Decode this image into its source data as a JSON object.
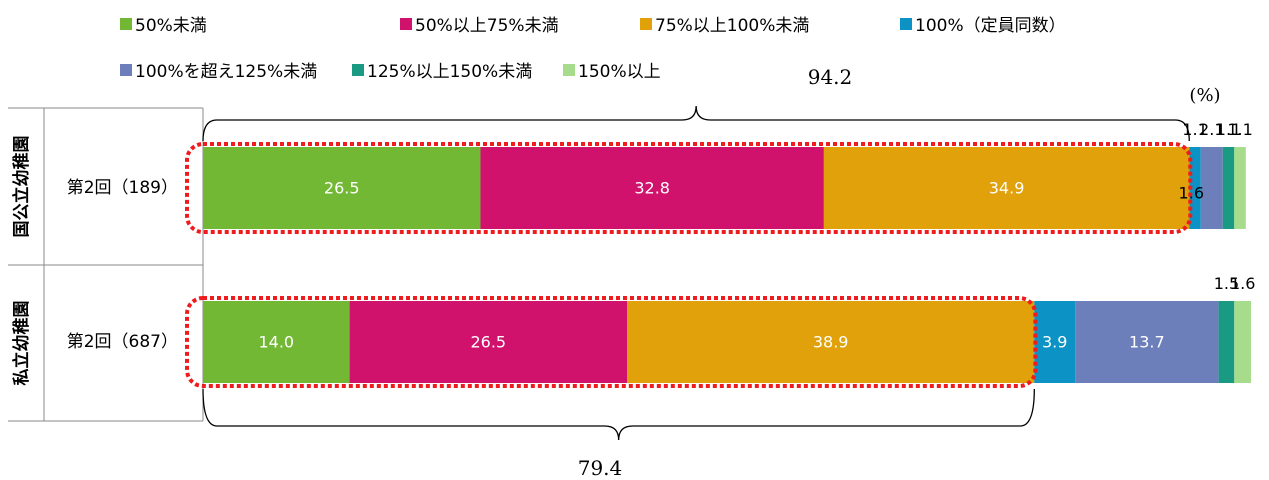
{
  "chart_data": {
    "type": "bar",
    "orientation": "horizontal",
    "stacked": true,
    "unit_label": "(%)",
    "colors": {
      "lt50": "#72b834",
      "50to75": "#d0126c",
      "75to100": "#e0a10a",
      "eq100": "#0c92c4",
      "100to125": "#6c7fba",
      "125to150": "#1a9a82",
      "gte150": "#a6dc8c"
    },
    "series": [
      {
        "key": "lt50",
        "name": "50%未満"
      },
      {
        "key": "50to75",
        "name": "50%以上75%未満"
      },
      {
        "key": "75to100",
        "name": "75%以上100%未満"
      },
      {
        "key": "eq100",
        "name": "100%（定員同数）"
      },
      {
        "key": "100to125",
        "name": "100%を超え125%未満"
      },
      {
        "key": "125to150",
        "name": "125%以上150%未満"
      },
      {
        "key": "gte150",
        "name": "150%以上"
      }
    ],
    "groups": [
      {
        "group_label": "国公立幼稚園",
        "category": "第2回（189）",
        "values": [
          26.5,
          32.8,
          34.9,
          1.1,
          2.1,
          1.1,
          1.1
        ],
        "value_labels": [
          "26.5",
          "32.8",
          "34.9",
          "1.1",
          "2.1",
          "1.1",
          "1.1"
        ],
        "highlight_total": "94.2",
        "small_label": "1.6"
      },
      {
        "group_label": "私立幼稚園",
        "category": "第2回（687）",
        "values": [
          14.0,
          26.5,
          38.9,
          3.9,
          13.7,
          1.5,
          1.6
        ],
        "value_labels": [
          "14.0",
          "26.5",
          "38.9",
          "3.9",
          "13.7",
          "1.5",
          "1.6"
        ],
        "highlight_total": "79.4"
      }
    ]
  }
}
